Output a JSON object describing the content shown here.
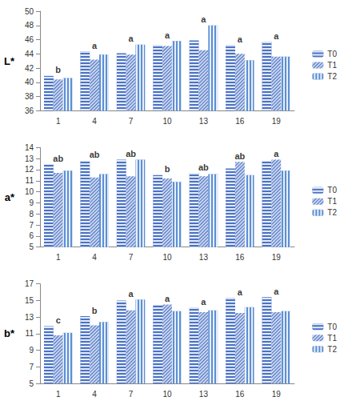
{
  "chart_data": [
    {
      "type": "bar",
      "y_label": "L*",
      "categories": [
        "1",
        "4",
        "7",
        "10",
        "13",
        "16",
        "19"
      ],
      "series": [
        {
          "name": "T0",
          "color": "#4a72c4",
          "values": [
            40.9,
            44.3,
            44.1,
            45.2,
            45.9,
            45.2,
            45.7
          ]
        },
        {
          "name": "T1",
          "color": "#c9d6ee",
          "values": [
            40.4,
            43.2,
            43.9,
            45.1,
            44.5,
            44.0,
            43.6
          ]
        },
        {
          "name": "T2",
          "color": "#5b8fd4",
          "values": [
            40.6,
            43.9,
            45.3,
            45.8,
            48.0,
            43.1,
            43.6
          ]
        }
      ],
      "annotations": [
        "b",
        "a",
        "a",
        "a",
        "a",
        "a",
        "a"
      ],
      "ylim": [
        36,
        50
      ],
      "yticks": [
        36,
        38,
        40,
        42,
        44,
        46,
        48,
        50
      ],
      "grid": false,
      "legend": "right"
    },
    {
      "type": "bar",
      "y_label": "a*",
      "categories": [
        "1",
        "4",
        "7",
        "10",
        "13",
        "16",
        "19"
      ],
      "series": [
        {
          "name": "T0",
          "color": "#4a72c4",
          "values": [
            12.5,
            12.8,
            12.9,
            11.5,
            11.7,
            12.1,
            12.8
          ]
        },
        {
          "name": "T1",
          "color": "#c9d6ee",
          "values": [
            11.7,
            11.3,
            11.4,
            11.2,
            11.4,
            12.7,
            12.9
          ]
        },
        {
          "name": "T2",
          "color": "#5b8fd4",
          "values": [
            11.9,
            11.6,
            12.9,
            10.9,
            11.6,
            11.5,
            11.9
          ]
        }
      ],
      "annotations": [
        "ab",
        "ab",
        "ab",
        "b",
        "ab",
        "ab",
        "a"
      ],
      "ylim": [
        5,
        14
      ],
      "yticks": [
        5,
        6,
        7,
        8,
        9,
        10,
        11,
        12,
        13,
        14
      ],
      "grid": false,
      "legend": "right"
    },
    {
      "type": "bar",
      "y_label": "b*",
      "categories": [
        "1",
        "4",
        "7",
        "10",
        "13",
        "16",
        "19"
      ],
      "series": [
        {
          "name": "T0",
          "color": "#4a72c4",
          "values": [
            11.9,
            13.1,
            15.0,
            14.4,
            14.1,
            15.3,
            15.4
          ]
        },
        {
          "name": "T1",
          "color": "#c9d6ee",
          "values": [
            10.8,
            12.0,
            13.8,
            14.5,
            13.6,
            13.5,
            13.6
          ]
        },
        {
          "name": "T2",
          "color": "#5b8fd4",
          "values": [
            11.1,
            12.4,
            15.1,
            13.7,
            13.8,
            14.2,
            13.7
          ]
        }
      ],
      "annotations": [
        "c",
        "b",
        "a",
        "a",
        "a",
        "a",
        "a"
      ],
      "ylim": [
        5,
        17
      ],
      "yticks": [
        5,
        7,
        9,
        11,
        13,
        15,
        17
      ],
      "grid": false,
      "legend": "right"
    }
  ]
}
